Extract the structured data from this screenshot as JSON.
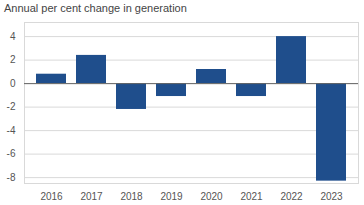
{
  "chart_data": {
    "type": "bar",
    "subtitle": "Annual per cent change in generation",
    "categories": [
      "2016",
      "2017",
      "2018",
      "2019",
      "2020",
      "2021",
      "2022",
      "2023"
    ],
    "values": [
      0.8,
      2.4,
      -2.2,
      -1.1,
      1.2,
      -1.1,
      4.0,
      -8.3
    ],
    "color": "#1f4e8c",
    "ylim": [
      -8.5,
      5.2
    ],
    "yticks": [
      -8,
      -6,
      -4,
      -2,
      0,
      2,
      4
    ],
    "grid": true
  }
}
